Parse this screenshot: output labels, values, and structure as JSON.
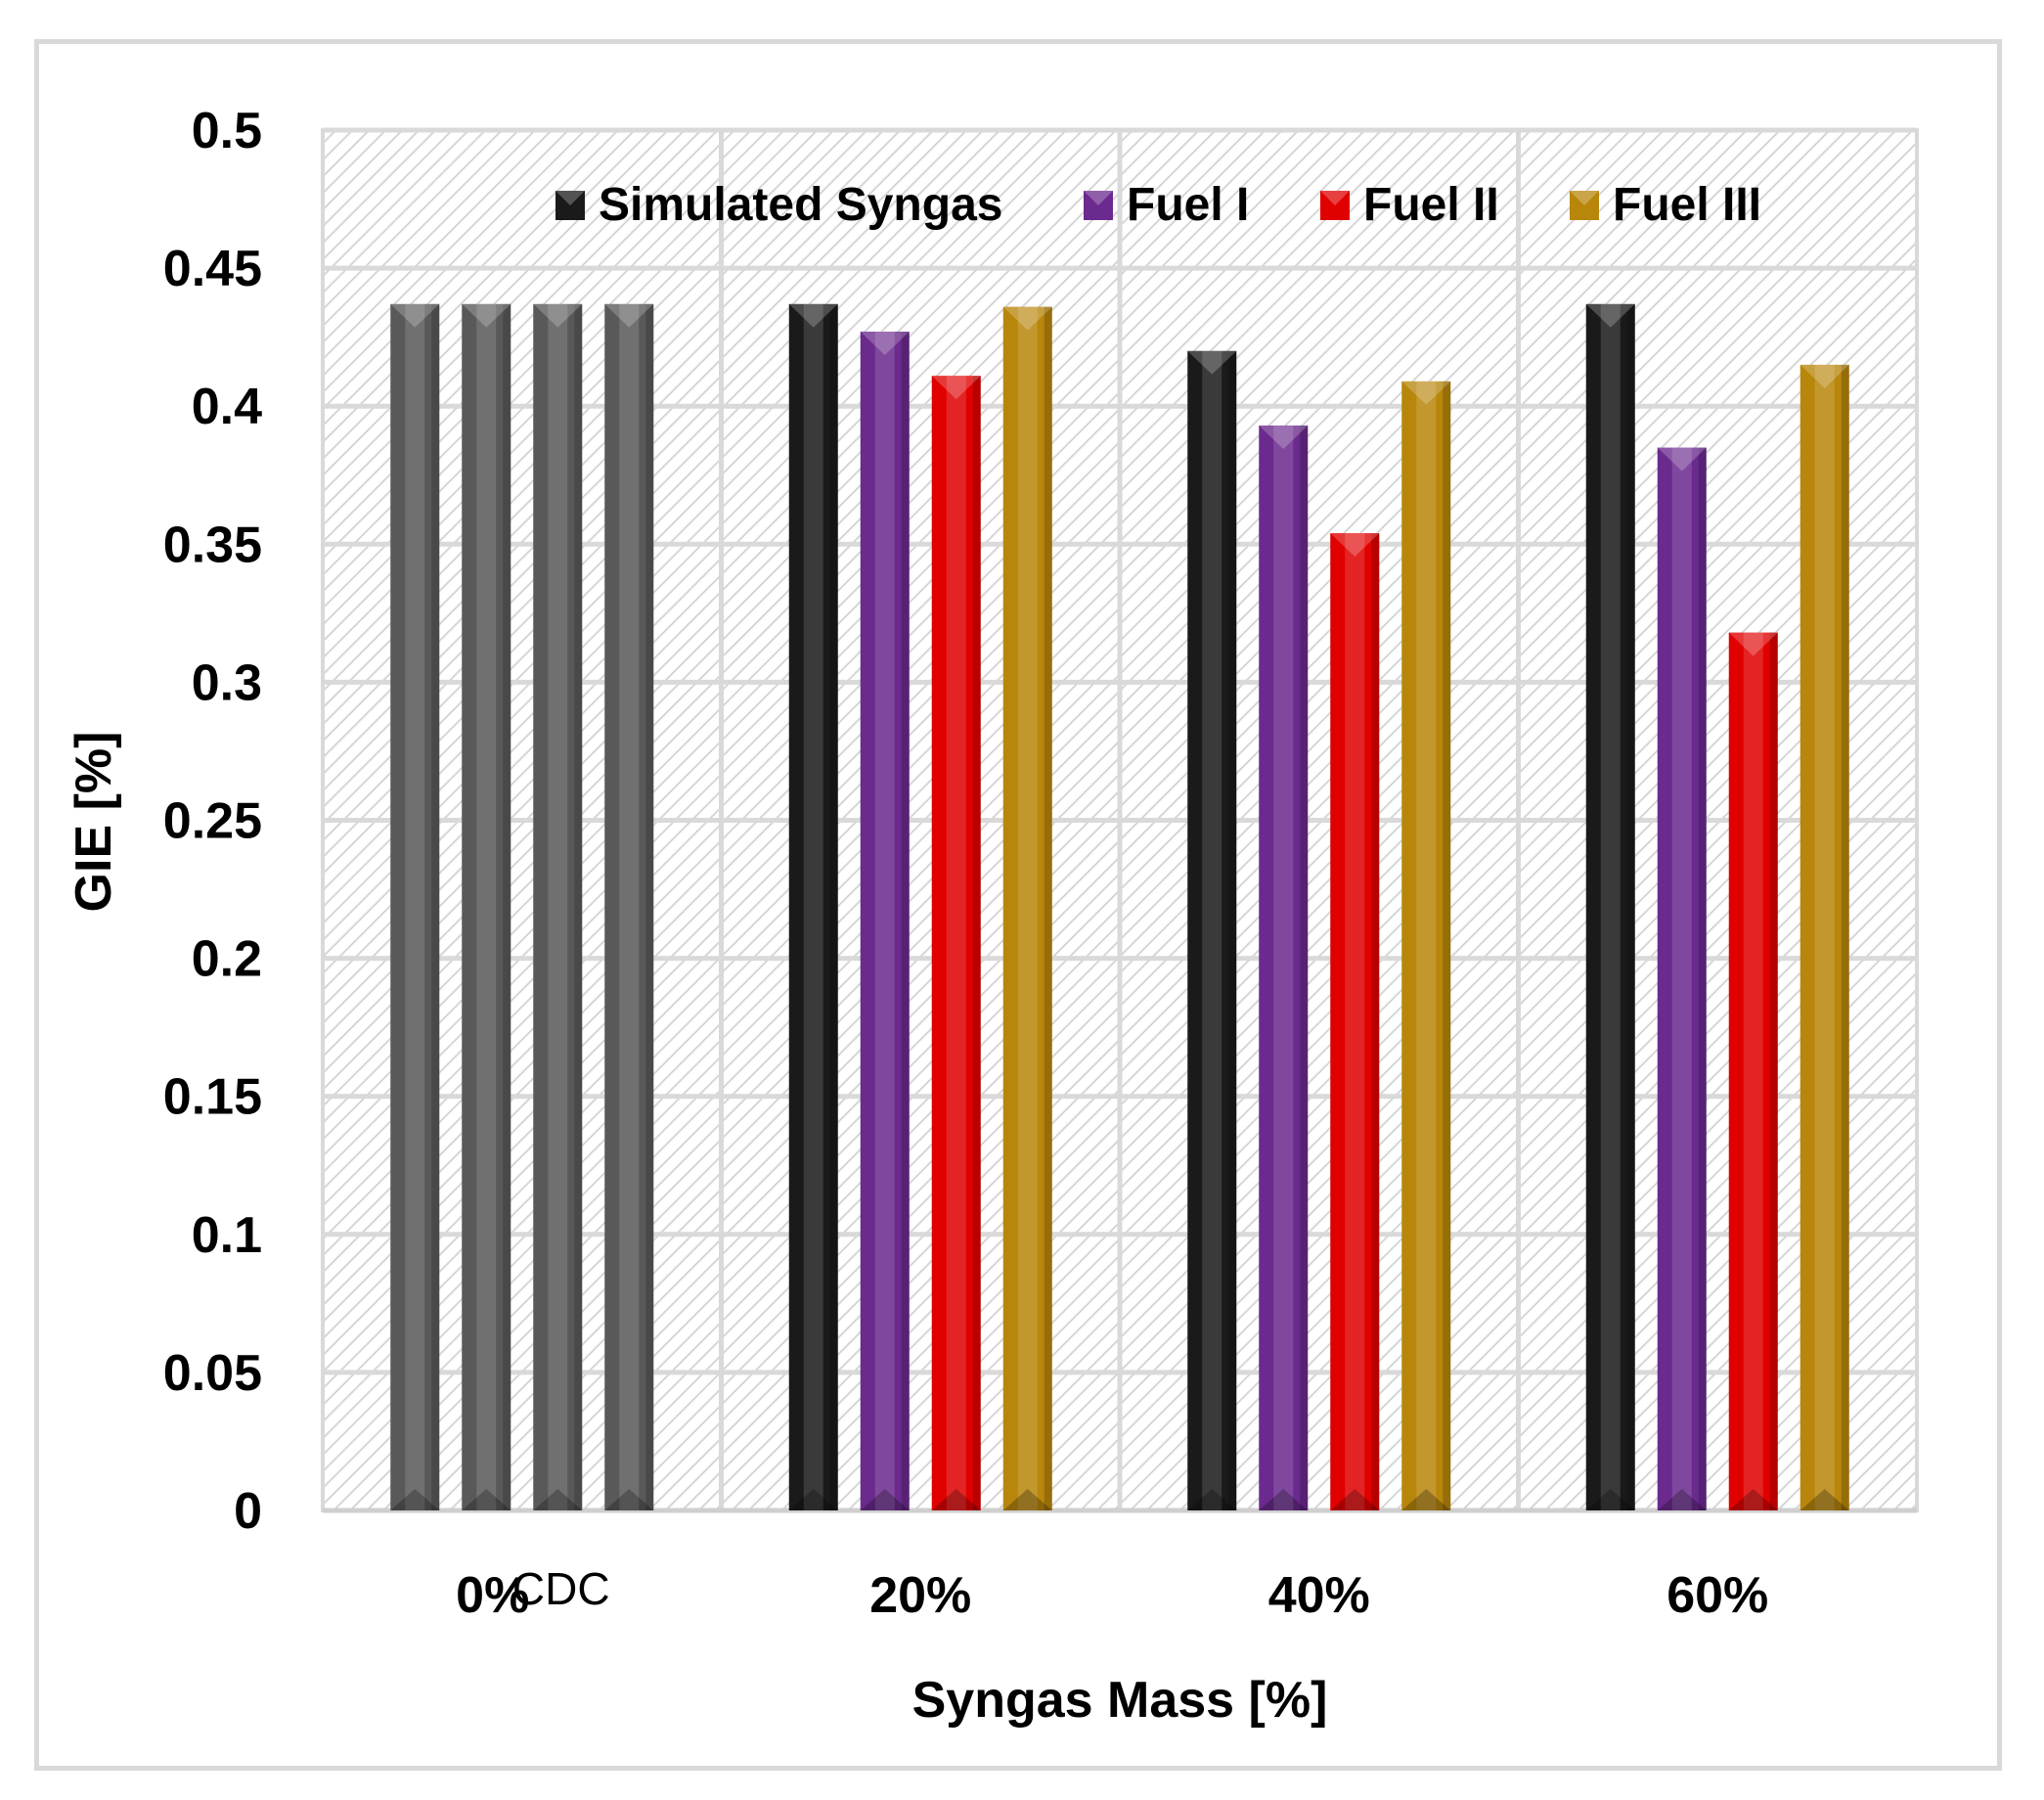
{
  "chart_data": {
    "type": "bar",
    "title": "",
    "xlabel": "Syngas Mass [%]",
    "ylabel": "GIE [%]",
    "ylim": [
      0,
      0.5
    ],
    "yticks": [
      "0",
      "0.05",
      "0.1",
      "0.15",
      "0.2",
      "0.25",
      "0.3",
      "0.35",
      "0.4",
      "0.45",
      "0.5"
    ],
    "categories": [
      "0%",
      "20%",
      "40%",
      "60%"
    ],
    "category_sublabel": "CDC",
    "baseline_color": "#595959",
    "legend_position": "top",
    "series": [
      {
        "name": "Simulated Syngas",
        "color": "#1a1a1a",
        "values": [
          0.437,
          0.437,
          0.42,
          0.437
        ]
      },
      {
        "name": "Fuel I",
        "color": "#6b2a8e",
        "values": [
          0.437,
          0.427,
          0.393,
          0.385
        ]
      },
      {
        "name": "Fuel II",
        "color": "#e00000",
        "values": [
          0.437,
          0.411,
          0.354,
          0.318
        ]
      },
      {
        "name": "Fuel III",
        "color": "#b8860b",
        "values": [
          0.437,
          0.436,
          0.409,
          0.415
        ]
      }
    ]
  }
}
